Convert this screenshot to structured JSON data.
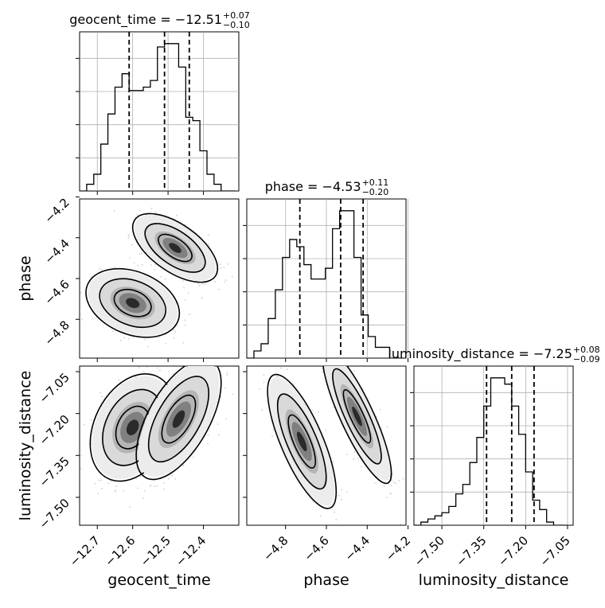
{
  "chart_data": {
    "type": "corner",
    "parameters": [
      {
        "key": "geocent_time",
        "label": "geocent_time",
        "title": "geocent_time = −12.51",
        "err_plus": "+0.07",
        "err_minus": "−0.10",
        "median": -12.51,
        "quantiles": [
          -12.61,
          -12.51,
          -12.44
        ],
        "range": [
          -12.75,
          -12.3
        ],
        "ticks": [
          -12.7,
          -12.6,
          -12.5,
          -12.4
        ],
        "tick_labels": [
          "−12.7",
          "−12.6",
          "−12.5",
          "−12.4"
        ]
      },
      {
        "key": "phase",
        "label": "phase",
        "title": "phase = −4.53",
        "err_plus": "+0.11",
        "err_minus": "−0.20",
        "median": -4.53,
        "quantiles": [
          -4.73,
          -4.53,
          -4.42
        ],
        "range": [
          -4.99,
          -4.21
        ],
        "ticks": [
          -4.8,
          -4.6,
          -4.4,
          -4.2
        ],
        "tick_labels": [
          "−4.8",
          "−4.6",
          "−4.4",
          "−4.2"
        ]
      },
      {
        "key": "luminosity_distance",
        "label": "luminosity_distance",
        "title": "luminosity_distance = −7.25",
        "err_plus": "+0.08",
        "err_minus": "−0.09",
        "median": -7.25,
        "quantiles": [
          -7.34,
          -7.25,
          -7.17
        ],
        "range": [
          -7.6,
          -7.03
        ],
        "ticks": [
          -7.5,
          -7.35,
          -7.2,
          -7.05
        ],
        "tick_labels": [
          "−7.50",
          "−7.35",
          "−7.20",
          "−7.05"
        ]
      }
    ],
    "histograms": [
      {
        "param": "geocent_time",
        "bin_edges": [
          -12.75,
          -12.73,
          -12.71,
          -12.69,
          -12.67,
          -12.65,
          -12.63,
          -12.61,
          -12.59,
          -12.57,
          -12.55,
          -12.53,
          -12.51,
          -12.49,
          -12.47,
          -12.45,
          -12.43,
          -12.41,
          -12.39,
          -12.37,
          -12.35,
          -12.33,
          -12.31
        ],
        "counts": [
          0,
          2,
          5,
          14,
          23,
          31,
          35,
          30,
          30,
          31,
          33,
          43,
          44,
          44,
          37,
          22,
          21,
          12,
          5,
          2,
          0,
          0
        ]
      },
      {
        "param": "phase",
        "bin_edges": [
          -4.99,
          -4.955,
          -4.92,
          -4.885,
          -4.85,
          -4.815,
          -4.78,
          -4.745,
          -4.71,
          -4.675,
          -4.64,
          -4.605,
          -4.57,
          -4.535,
          -4.5,
          -4.465,
          -4.43,
          -4.395,
          -4.36,
          -4.325,
          -4.29,
          -4.255,
          -4.22
        ],
        "counts": [
          0,
          2,
          4,
          11,
          19,
          28,
          33,
          31,
          26,
          22,
          22,
          25,
          36,
          41,
          41,
          28,
          12,
          6,
          3,
          3,
          0,
          0
        ]
      },
      {
        "param": "luminosity_distance",
        "bin_edges": [
          -7.6,
          -7.575,
          -7.55,
          -7.525,
          -7.5,
          -7.475,
          -7.45,
          -7.425,
          -7.4,
          -7.375,
          -7.35,
          -7.325,
          -7.3,
          -7.275,
          -7.25,
          -7.225,
          -7.2,
          -7.175,
          -7.15,
          -7.125,
          -7.1,
          -7.075,
          -7.05
        ],
        "counts": [
          0,
          1,
          2,
          3,
          4,
          6,
          10,
          13,
          20,
          28,
          38,
          47,
          47,
          45,
          38,
          29,
          17,
          8,
          5,
          1,
          0,
          0
        ]
      }
    ],
    "pairs": [
      {
        "x": "geocent_time",
        "y": "phase",
        "modes": [
          {
            "cx": -12.48,
            "cy": -4.45,
            "sx": 0.05,
            "sy": 0.07,
            "rho": -0.6,
            "weight": 0.55
          },
          {
            "cx": -12.6,
            "cy": -4.72,
            "sx": 0.055,
            "sy": 0.07,
            "rho": -0.3,
            "weight": 0.45
          }
        ]
      },
      {
        "x": "geocent_time",
        "y": "luminosity_distance",
        "modes": [
          {
            "cx": -12.6,
            "cy": -7.25,
            "sx": 0.05,
            "sy": 0.08,
            "rho": 0.3,
            "weight": 0.45
          },
          {
            "cx": -12.47,
            "cy": -7.22,
            "sx": 0.05,
            "sy": 0.09,
            "rho": 0.6,
            "weight": 0.55
          }
        ]
      },
      {
        "x": "phase",
        "y": "luminosity_distance",
        "modes": [
          {
            "cx": -4.45,
            "cy": -7.21,
            "sx": 0.07,
            "sy": 0.1,
            "rho": -0.85,
            "weight": 0.55
          },
          {
            "cx": -4.72,
            "cy": -7.3,
            "sx": 0.07,
            "sy": 0.1,
            "rho": -0.75,
            "weight": 0.45
          }
        ]
      }
    ],
    "contour_levels": [
      "0.39",
      "0.86",
      "0.99"
    ],
    "grid": true,
    "colors": {
      "line": "#000000",
      "samples": "#9a9a9a",
      "grid": "#b0b0b0"
    }
  }
}
